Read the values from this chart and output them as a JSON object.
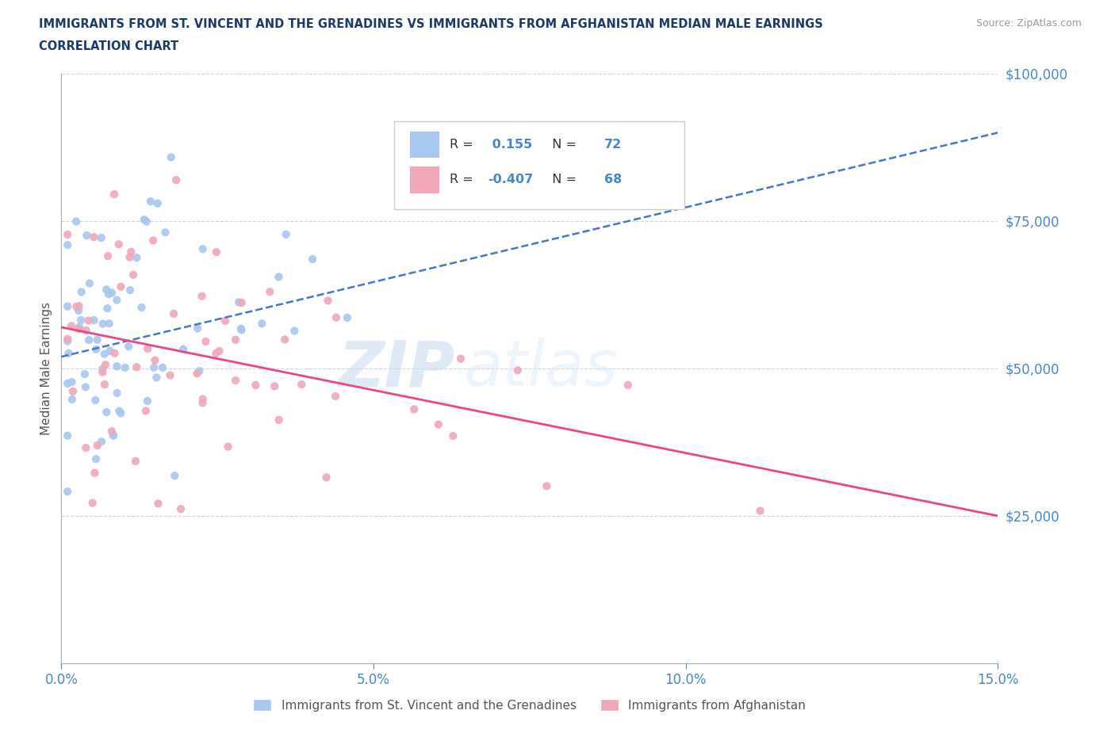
{
  "title_line1": "IMMIGRANTS FROM ST. VINCENT AND THE GRENADINES VS IMMIGRANTS FROM AFGHANISTAN MEDIAN MALE EARNINGS",
  "title_line2": "CORRELATION CHART",
  "source": "Source: ZipAtlas.com",
  "watermark_zip": "ZIP",
  "watermark_atlas": "atlas",
  "series1_label": "Immigrants from St. Vincent and the Grenadines",
  "series2_label": "Immigrants from Afghanistan",
  "series1_R": 0.155,
  "series1_N": 72,
  "series2_R": -0.407,
  "series2_N": 68,
  "series1_color": "#a8c8f0",
  "series2_color": "#f0a8b8",
  "series1_line_color": "#4477cc",
  "series2_line_color": "#ee4488",
  "ylabel": "Median Male Earnings",
  "xlim": [
    0.0,
    0.15
  ],
  "ylim": [
    0,
    100000
  ],
  "xtick_labels": [
    "0.0%",
    "5.0%",
    "10.0%",
    "15.0%"
  ],
  "xtick_values": [
    0.0,
    0.05,
    0.1,
    0.15
  ],
  "ytick_labels": [
    "$25,000",
    "$50,000",
    "$75,000",
    "$100,000"
  ],
  "ytick_values": [
    25000,
    50000,
    75000,
    100000
  ],
  "axis_color": "#4488cc",
  "title_color": "#1a3a6b",
  "background_color": "#ffffff",
  "trend1_x0": 0.0,
  "trend1_y0": 52000,
  "trend1_x1": 0.15,
  "trend1_y1": 90000,
  "trend2_x0": 0.0,
  "trend2_y0": 57000,
  "trend2_x1": 0.15,
  "trend2_y1": 25000
}
